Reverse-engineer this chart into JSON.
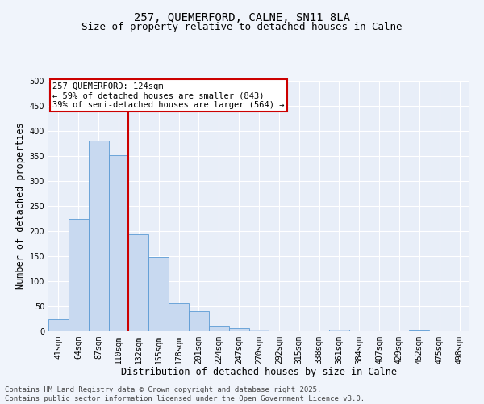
{
  "title_line1": "257, QUEMERFORD, CALNE, SN11 8LA",
  "title_line2": "Size of property relative to detached houses in Calne",
  "xlabel": "Distribution of detached houses by size in Calne",
  "ylabel": "Number of detached properties",
  "categories": [
    "41sqm",
    "64sqm",
    "87sqm",
    "110sqm",
    "132sqm",
    "155sqm",
    "178sqm",
    "201sqm",
    "224sqm",
    "247sqm",
    "270sqm",
    "292sqm",
    "315sqm",
    "338sqm",
    "361sqm",
    "384sqm",
    "407sqm",
    "429sqm",
    "452sqm",
    "475sqm",
    "498sqm"
  ],
  "values": [
    25,
    225,
    380,
    352,
    193,
    148,
    56,
    40,
    10,
    7,
    4,
    0,
    0,
    0,
    3,
    0,
    0,
    0,
    2,
    0,
    0
  ],
  "bar_color": "#c8d9f0",
  "bar_edge_color": "#5b9bd5",
  "vline_x_index": 4.0,
  "vline_color": "#cc0000",
  "annotation_text": "257 QUEMERFORD: 124sqm\n← 59% of detached houses are smaller (843)\n39% of semi-detached houses are larger (564) →",
  "annotation_box_color": "#cc0000",
  "ylim": [
    0,
    500
  ],
  "yticks": [
    0,
    50,
    100,
    150,
    200,
    250,
    300,
    350,
    400,
    450,
    500
  ],
  "background_color": "#e8eef8",
  "grid_color": "#ffffff",
  "footer_line1": "Contains HM Land Registry data © Crown copyright and database right 2025.",
  "footer_line2": "Contains public sector information licensed under the Open Government Licence v3.0.",
  "title_fontsize": 10,
  "subtitle_fontsize": 9,
  "axis_label_fontsize": 8.5,
  "tick_fontsize": 7,
  "annotation_fontsize": 7.5,
  "footer_fontsize": 6.5,
  "fig_width": 6.0,
  "fig_height": 5.0,
  "fig_dpi": 100
}
